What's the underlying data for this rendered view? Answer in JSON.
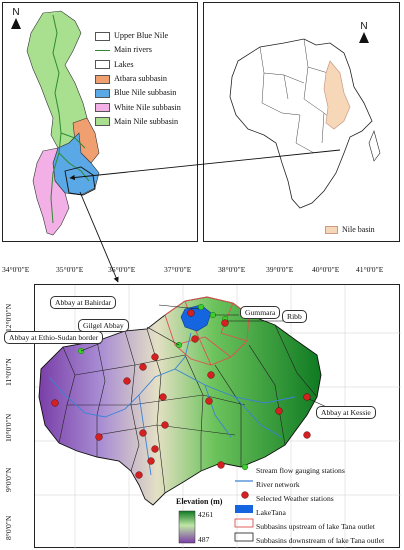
{
  "nile_panel": {
    "north_label": "N",
    "legend": [
      {
        "label": "Upper Blue Nile",
        "swatch": "#ffffff",
        "kind": "box"
      },
      {
        "label": "Main rivers",
        "swatch": "#2f8a2f",
        "kind": "line"
      },
      {
        "label": "Lakes",
        "swatch": "#ffffff",
        "kind": "box"
      },
      {
        "label": "Atbara subbasin",
        "swatch": "#f0a070",
        "kind": "box"
      },
      {
        "label": "Blue Nile subbasin",
        "swatch": "#5aa8e6",
        "kind": "box"
      },
      {
        "label": "White Nile subbasin",
        "swatch": "#f2b0e6",
        "kind": "box"
      },
      {
        "label": "Main Nile subbasin",
        "swatch": "#a8e090",
        "kind": "box"
      }
    ]
  },
  "africa_panel": {
    "north_label": "N",
    "legend_label": "Nile basin",
    "legend_color": "#f6d7b7"
  },
  "main_map": {
    "x_ticks": [
      "34°0'0\"E",
      "35°0'0\"E",
      "36°0'0\"E",
      "37°0'0\"E",
      "38°0'0\"E",
      "39°0'0\"E",
      "40°0'0\"E",
      "41°0'0\"E"
    ],
    "y_ticks": [
      "12°0'0\"N",
      "11°0'0\"N",
      "10°0'0\"N",
      "9°0'0\"N",
      "8°0'0\"N"
    ],
    "callouts": {
      "bahirdar": "Abbay at Bahirdar",
      "gilgel": "Gilgel Abbay",
      "border": "Abbay at Ethio-Sudan border",
      "gummara": "Gummara",
      "ribb": "Ribb",
      "kessie": "Abbay at Kessie"
    },
    "elevation": {
      "title": "Elevation (m)",
      "max": "4261",
      "min": "487"
    },
    "legend": [
      {
        "label": "Stream flow gauging stations"
      },
      {
        "label": "River network"
      },
      {
        "label": "Selected Weather stations"
      },
      {
        "label": "LakeTana"
      },
      {
        "label": "Subbasins upstream of lake Tana outlet"
      },
      {
        "label": "Subbasins downstream of lake Tana outlet"
      }
    ]
  },
  "colors": {
    "lake": "#1565e0",
    "gauge": "#3ecf2e",
    "weather": "#d42020",
    "upstream_border": "#e05050"
  }
}
